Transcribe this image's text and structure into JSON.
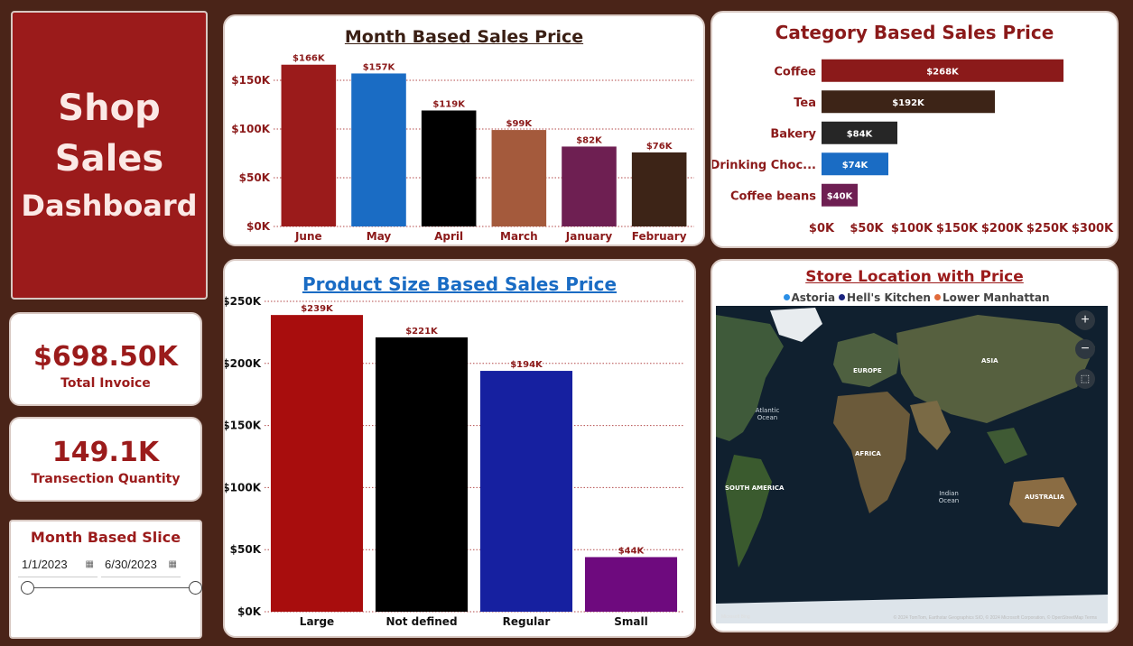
{
  "title": {
    "line1": "Shop",
    "line2": "Sales",
    "line3": "Dashboard"
  },
  "kpis": {
    "total_invoice": {
      "value": "$698.50K",
      "label": "Total Invoice"
    },
    "quantity": {
      "value": "149.1K",
      "label": "Transection Quantity"
    }
  },
  "slicer": {
    "title": "Month Based Slice",
    "start": "1/1/2023",
    "end": "6/30/2023",
    "range": [
      0,
      1
    ]
  },
  "month_chart": {
    "chart_data": {
      "type": "bar",
      "title": "Month Based Sales Price",
      "categories": [
        "June",
        "May",
        "April",
        "March",
        "January",
        "February"
      ],
      "values": [
        166,
        157,
        119,
        99,
        82,
        76
      ],
      "data_labels": [
        "$166K",
        "$157K",
        "$119K",
        "$99K",
        "$82K",
        "$76K"
      ],
      "colors": [
        "#9b1b1b",
        "#1a6cc4",
        "#000000",
        "#a45a3c",
        "#6e1f52",
        "#3d2417"
      ],
      "yticks": [
        "$0K",
        "$50K",
        "$100K",
        "$150K"
      ],
      "ytick_values": [
        0,
        50,
        100,
        150
      ],
      "ylim": [
        0,
        175
      ],
      "grid": true
    }
  },
  "category_chart": {
    "chart_data": {
      "type": "bar",
      "orientation": "horizontal",
      "title": "Category Based Sales Price",
      "categories": [
        "Coffee",
        "Tea",
        "Bakery",
        "Drinking Choc...",
        "Coffee beans"
      ],
      "values": [
        268,
        192,
        84,
        74,
        40
      ],
      "data_labels": [
        "$268K",
        "$192K",
        "$84K",
        "$74K",
        "$40K"
      ],
      "colors": [
        "#8b1a1a",
        "#3d2417",
        "#262626",
        "#1a6cc4",
        "#6e1f52"
      ],
      "xticks": [
        "$0K",
        "$50K",
        "$100K",
        "$150K",
        "$200K",
        "$250K",
        "$300K"
      ],
      "xtick_values": [
        0,
        50,
        100,
        150,
        200,
        250,
        300
      ],
      "xlim": [
        0,
        300
      ]
    }
  },
  "size_chart": {
    "chart_data": {
      "type": "bar",
      "title": "Product Size Based Sales Price",
      "categories": [
        "Large",
        "Not defined",
        "Regular",
        "Small"
      ],
      "values": [
        239,
        221,
        194,
        44
      ],
      "data_labels": [
        "$239K",
        "$221K",
        "$194K",
        "$44K"
      ],
      "colors": [
        "#a80d0d",
        "#000000",
        "#1620a0",
        "#6e0a7e"
      ],
      "yticks": [
        "$0K",
        "$50K",
        "$100K",
        "$150K",
        "$200K",
        "$250K"
      ],
      "ytick_values": [
        0,
        50,
        100,
        150,
        200,
        250
      ],
      "ylim": [
        0,
        250
      ],
      "grid": true
    }
  },
  "map_panel": {
    "title": "Store Location with Price",
    "legend": [
      {
        "name": "Astoria",
        "color": "#2b8fe6"
      },
      {
        "name": "Hell's Kitchen",
        "color": "#1a237e"
      },
      {
        "name": "Lower Manhattan",
        "color": "#e06a3a"
      }
    ],
    "labels": {
      "europe": "EUROPE",
      "asia": "ASIA",
      "africa": "AFRICA",
      "south_america": "SOUTH AMERICA",
      "australia": "AUSTRALIA",
      "atlantic": "Atlantic Ocean",
      "indian": "Indian Ocean"
    },
    "attribution": "© 2024 TomTom, Earthstar Geographics SIO, © 2024 Microsoft Corporation, © OpenStreetMap  Terms",
    "bing": "Microsoft Bing",
    "zoom_in": "+",
    "zoom_out": "−"
  }
}
